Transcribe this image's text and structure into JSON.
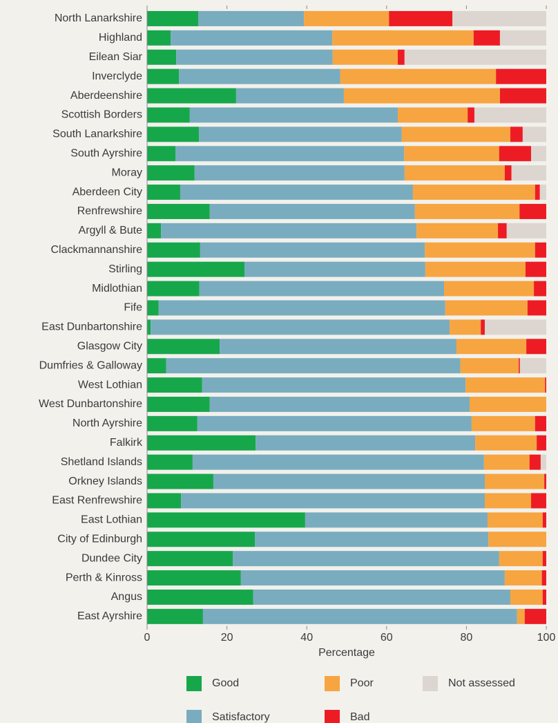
{
  "chart_data": {
    "type": "stacked_barh",
    "categories": [
      "North Lanarkshire",
      "Highland",
      "Eilean Siar",
      "Inverclyde",
      "Aberdeenshire",
      "Scottish Borders",
      "South Lanarkshire",
      "South Ayrshire",
      "Moray",
      "Aberdeen City",
      "Renfrewshire",
      "Argyll & Bute",
      "Clackmannanshire",
      "Stirling",
      "Midlothian",
      "Fife",
      "East Dunbartonshire",
      "Glasgow City",
      "Dumfries & Galloway",
      "West Lothian",
      "West Dunbartonshire",
      "North Ayrshire",
      "Falkirk",
      "Shetland Islands",
      "Orkney Islands",
      "East Renfrewshire",
      "East Lothian",
      "City of Edinburgh",
      "Dundee City",
      "Perth & Kinross",
      "Angus",
      "East Ayrshire"
    ],
    "series": [
      {
        "name": "Good",
        "color": "#17a74b",
        "values": [
          12.8,
          5.9,
          7.3,
          8.0,
          22.3,
          10.7,
          13.0,
          7.1,
          11.9,
          8.3,
          15.7,
          3.5,
          13.3,
          24.4,
          13.1,
          2.9,
          0.9,
          18.2,
          4.8,
          13.8,
          15.7,
          12.6,
          27.2,
          11.4,
          16.6,
          8.5,
          39.6,
          27.0,
          21.5,
          23.5,
          26.6,
          14.0
        ]
      },
      {
        "name": "Satisfactory",
        "color": "#7aacbf",
        "values": [
          26.5,
          40.5,
          39.2,
          40.4,
          27.0,
          52.1,
          50.8,
          57.3,
          52.6,
          58.3,
          51.4,
          64.0,
          56.3,
          45.3,
          61.3,
          71.8,
          74.9,
          59.3,
          73.7,
          66.0,
          65.1,
          68.7,
          55.0,
          73.0,
          68.0,
          76.1,
          45.7,
          58.5,
          66.7,
          66.1,
          64.4,
          78.7
        ]
      },
      {
        "name": "Poor",
        "color": "#f7a541",
        "values": [
          21.3,
          35.4,
          16.3,
          39.0,
          39.1,
          17.5,
          27.2,
          23.8,
          25.1,
          30.6,
          26.2,
          20.4,
          27.6,
          25.1,
          22.5,
          20.6,
          7.8,
          17.5,
          14.6,
          19.9,
          19.2,
          15.9,
          15.4,
          11.4,
          14.9,
          11.6,
          13.8,
          14.5,
          10.9,
          9.3,
          8.1,
          1.9
        ]
      },
      {
        "name": "Bad",
        "color": "#ed1c24",
        "values": [
          15.9,
          6.6,
          1.7,
          12.6,
          11.6,
          1.7,
          3.1,
          8.0,
          1.7,
          1.2,
          6.7,
          2.2,
          2.8,
          5.2,
          3.1,
          4.7,
          1.0,
          5.0,
          0.3,
          0.3,
          0,
          2.8,
          2.4,
          2.8,
          0.5,
          3.8,
          0.9,
          0,
          0.9,
          1.1,
          0.9,
          5.4
        ]
      },
      {
        "name": "Not assessed",
        "color": "#ddd5cf",
        "values": [
          23.5,
          11.6,
          35.5,
          0,
          0,
          18.0,
          5.9,
          3.8,
          8.7,
          1.6,
          0,
          9.9,
          0,
          0,
          0,
          0,
          15.4,
          0,
          6.6,
          0,
          0,
          0,
          0,
          1.4,
          0,
          0,
          0,
          0,
          0,
          0,
          0,
          0
        ]
      }
    ],
    "xlabel": "Percentage",
    "xlim": [
      0,
      100
    ],
    "xticks": [
      0,
      20,
      40,
      60,
      80,
      100
    ]
  }
}
